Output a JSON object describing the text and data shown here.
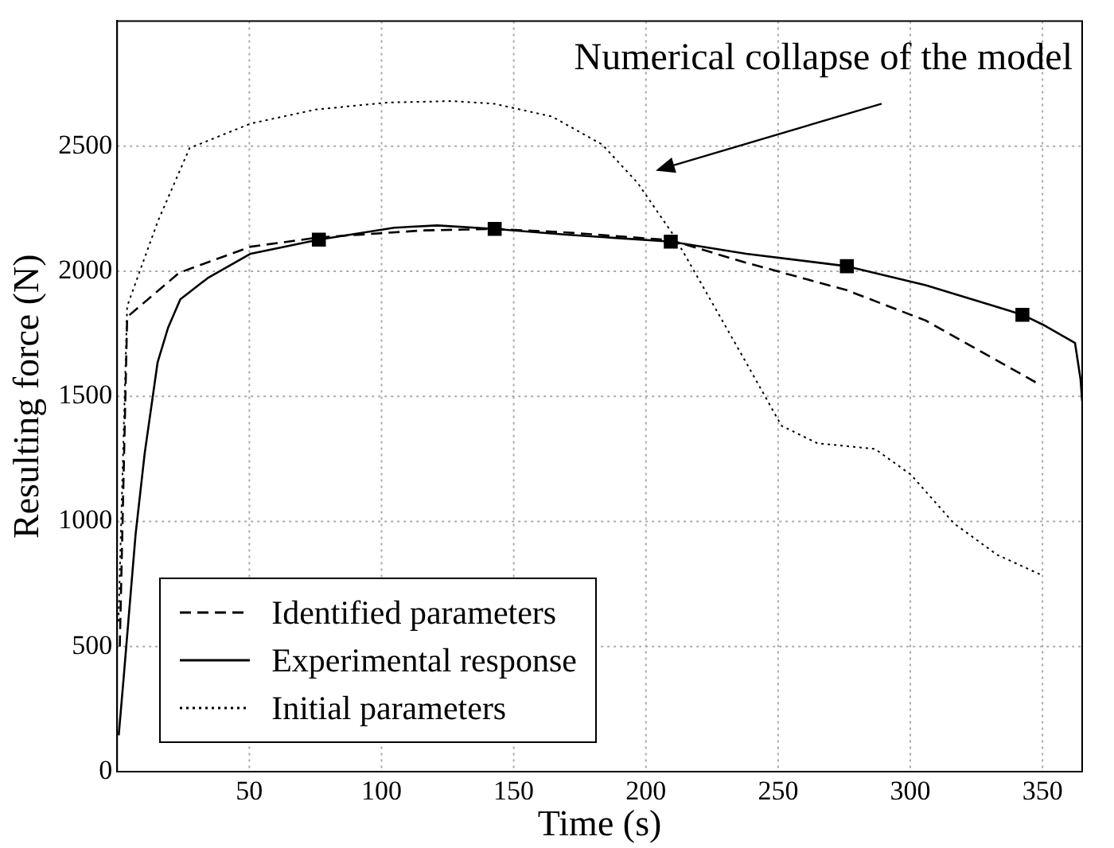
{
  "chart_data": {
    "type": "line",
    "xlabel": "Time (s)",
    "ylabel": "Resulting force (N)",
    "xlim": [
      0,
      365
    ],
    "ylim": [
      0,
      3000
    ],
    "xticks": [
      50,
      100,
      150,
      200,
      250,
      300,
      350
    ],
    "yticks": [
      0,
      500,
      1000,
      1500,
      2000,
      2500
    ],
    "grid": true,
    "legend": "bottom left",
    "marker": "none",
    "annotations": [
      "Numerical collapse of the model"
    ],
    "series": [
      {
        "name": "Identified parameters",
        "color": "#000000",
        "line_style": "dashed",
        "x": [
          1,
          3.8,
          23.5,
          50.5,
          76.3,
          115.6,
          142.8,
          170,
          209.4,
          237.9,
          276,
          305.8,
          349.3
        ],
        "values": [
          500,
          1817,
          1994,
          2098,
          2135,
          2163,
          2169,
          2155,
          2124,
          2034,
          1924,
          1803,
          1545
        ]
      },
      {
        "name": "Experimental response",
        "color": "#000000",
        "line_style": "solid",
        "x": [
          0.6,
          2.4,
          7,
          10.4,
          15.3,
          19.3,
          23.9,
          34.2,
          50.5,
          76.3,
          104.8,
          121,
          142.8,
          170,
          209.4,
          237.9,
          276,
          305.8,
          342.4,
          350.2,
          362.3,
          364.4,
          365
        ],
        "values": [
          145,
          367,
          950,
          1270,
          1635,
          1775,
          1888,
          1972,
          2070,
          2126,
          2174,
          2183,
          2169,
          2146,
          2118,
          2070,
          2020,
          1944,
          1826,
          1786,
          1713,
          1567,
          1480
        ]
      },
      {
        "name": "Initial parameters",
        "color": "#000000",
        "line_style": "dotted",
        "x": [
          0.5,
          3.8,
          15.3,
          27.4,
          50.5,
          75,
          102,
          126.6,
          142.8,
          164.5,
          183.5,
          197,
          210.7,
          224.3,
          237.9,
          251.3,
          264.9,
          286.6,
          300.2,
          316.5,
          332.8,
          350
        ],
        "values": [
          600,
          1860,
          2197,
          2492,
          2590,
          2646,
          2674,
          2680,
          2669,
          2618,
          2506,
          2351,
          2140,
          1888,
          1635,
          1382,
          1312,
          1290,
          1187,
          992,
          867,
          784
        ]
      },
      {
        "type": "scatter",
        "marker": "square",
        "color": "#000000",
        "x": [
          76.3,
          142.8,
          209.4,
          276,
          342.4
        ],
        "values": [
          2126,
          2169,
          2118,
          2020,
          1826
        ]
      }
    ]
  }
}
